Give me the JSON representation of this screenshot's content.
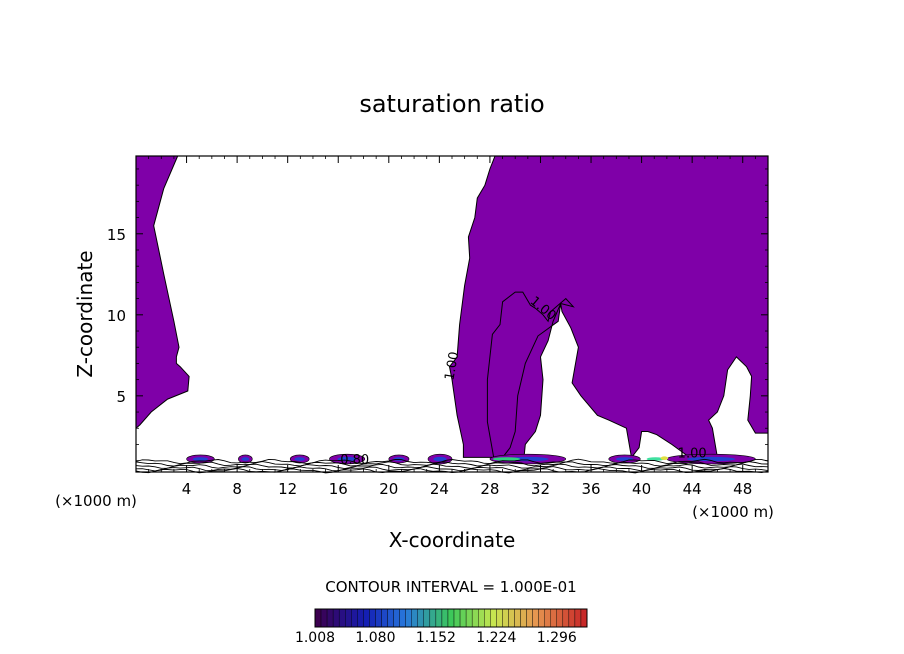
{
  "chart_data": {
    "type": "contour",
    "title": "saturation ratio",
    "xlabel": "X-coordinate",
    "ylabel": "Z-coordinate",
    "x_unit_left": "(×1000 m)",
    "x_unit_right": "(×1000 m)",
    "xlim": [
      0,
      50
    ],
    "ylim": [
      0.3,
      19.8
    ],
    "x_ticks": [
      4,
      8,
      12,
      16,
      20,
      24,
      28,
      32,
      36,
      40,
      44,
      48
    ],
    "y_ticks": [
      5,
      10,
      15
    ],
    "contour_labels": [
      {
        "text": "1.00",
        "x": 25.3,
        "y": 6.8
      },
      {
        "text": "1.00",
        "x": 32.0,
        "y": 10.2
      },
      {
        "text": "0.80",
        "x": 17.3,
        "y": 0.8
      },
      {
        "text": "1.00",
        "x": 44.0,
        "y": 1.2
      }
    ],
    "fill_color": "#7f00a8",
    "contour_interval_text": "CONTOUR INTERVAL = 1.000E-01",
    "colorbar": {
      "tick_labels": [
        "1.008",
        "1.080",
        "1.152",
        "1.224",
        "1.296"
      ],
      "range": [
        1.008,
        1.332
      ]
    },
    "regions": [
      {
        "points": [
          [
            0,
            19.8
          ],
          [
            3.3,
            19.8
          ],
          [
            2.2,
            17.8
          ],
          [
            1.4,
            15.5
          ],
          [
            2.2,
            12.5
          ],
          [
            3.0,
            9.6
          ],
          [
            3.4,
            8.0
          ],
          [
            3.2,
            7.4
          ],
          [
            3.2,
            7.0
          ],
          [
            3.5,
            6.8
          ],
          [
            4.2,
            6.2
          ],
          [
            4.1,
            5.3
          ],
          [
            2.5,
            4.8
          ],
          [
            1.2,
            4.0
          ],
          [
            0.3,
            3.2
          ],
          [
            0,
            3.0
          ]
        ]
      },
      {
        "points": [
          [
            28.4,
            19.8
          ],
          [
            50,
            19.8
          ],
          [
            50,
            2.7
          ],
          [
            49,
            2.7
          ],
          [
            48.4,
            3.5
          ],
          [
            48.6,
            5.0
          ],
          [
            48.7,
            6.2
          ],
          [
            48.3,
            6.8
          ],
          [
            47.5,
            7.4
          ],
          [
            46.8,
            6.6
          ],
          [
            46.5,
            5.0
          ],
          [
            46.0,
            4.0
          ],
          [
            45.3,
            3.5
          ],
          [
            45.6,
            3.0
          ],
          [
            46.0,
            1.2
          ],
          [
            43.8,
            1.2
          ],
          [
            42.4,
            2.0
          ],
          [
            41.2,
            2.6
          ],
          [
            40.5,
            2.8
          ],
          [
            40.0,
            2.8
          ],
          [
            39.8,
            1.8
          ],
          [
            39.2,
            1.2
          ],
          [
            38.8,
            3.0
          ],
          [
            37.4,
            3.5
          ],
          [
            36.5,
            3.8
          ],
          [
            35.2,
            5.0
          ],
          [
            34.5,
            5.8
          ],
          [
            35.0,
            8.0
          ],
          [
            34.4,
            9.2
          ],
          [
            33.7,
            10.2
          ],
          [
            33.6,
            10.7
          ],
          [
            33.0,
            9.6
          ],
          [
            32.6,
            8.4
          ],
          [
            32.0,
            7.4
          ],
          [
            32.2,
            6.0
          ],
          [
            32.0,
            3.8
          ],
          [
            31.6,
            2.8
          ],
          [
            30.8,
            2.0
          ],
          [
            30.7,
            1.2
          ],
          [
            28.3,
            1.2
          ],
          [
            27.8,
            3.4
          ],
          [
            27.8,
            6.0
          ],
          [
            28.2,
            8.8
          ],
          [
            28.8,
            9.4
          ],
          [
            29.0,
            10.8
          ],
          [
            30.0,
            11.4
          ],
          [
            30.6,
            11.4
          ],
          [
            31.2,
            10.6
          ],
          [
            31.6,
            10.4
          ],
          [
            32.2,
            10.0
          ],
          [
            32.6,
            9.6
          ],
          [
            32.8,
            10.2
          ],
          [
            34.0,
            11.0
          ],
          [
            34.6,
            10.5
          ],
          [
            33.6,
            10.7
          ],
          [
            33.4,
            9.6
          ],
          [
            31.8,
            8.7
          ],
          [
            30.8,
            7.0
          ],
          [
            30.2,
            5.0
          ],
          [
            30.0,
            2.8
          ],
          [
            29.6,
            1.8
          ],
          [
            29.0,
            1.2
          ],
          [
            25.9,
            1.2
          ],
          [
            25.9,
            2.0
          ],
          [
            25.4,
            3.8
          ],
          [
            25.0,
            6.0
          ],
          [
            24.8,
            6.8
          ],
          [
            25.4,
            7.4
          ],
          [
            25.6,
            9.4
          ],
          [
            26.0,
            11.8
          ],
          [
            26.4,
            13.5
          ],
          [
            26.3,
            14.8
          ],
          [
            26.8,
            16.0
          ],
          [
            27.0,
            17.2
          ],
          [
            27.6,
            18.0
          ],
          [
            28.0,
            19.0
          ]
        ]
      }
    ],
    "blobs": [
      {
        "x": 4.0,
        "y": 1.1,
        "w": 2.2,
        "h": 0.5
      },
      {
        "x": 8.1,
        "y": 1.1,
        "w": 1.1,
        "h": 0.5
      },
      {
        "x": 12.2,
        "y": 1.1,
        "w": 1.5,
        "h": 0.5
      },
      {
        "x": 15.3,
        "y": 1.1,
        "w": 2.8,
        "h": 0.6
      },
      {
        "x": 20.0,
        "y": 1.1,
        "w": 1.6,
        "h": 0.5
      },
      {
        "x": 23.1,
        "y": 1.1,
        "w": 1.9,
        "h": 0.6
      },
      {
        "x": 28.0,
        "y": 1.1,
        "w": 6.0,
        "h": 0.6
      },
      {
        "x": 37.4,
        "y": 1.1,
        "w": 2.5,
        "h": 0.5
      },
      {
        "x": 42.0,
        "y": 1.1,
        "w": 7.0,
        "h": 0.6
      }
    ],
    "highlights": [
      {
        "x": 28.2,
        "y": 1.1,
        "w": 2.2,
        "h": 0.25,
        "color": "#30d080"
      },
      {
        "x": 40.4,
        "y": 1.1,
        "w": 1.4,
        "h": 0.25,
        "color": "#40e0a0"
      },
      {
        "x": 41.5,
        "y": 1.15,
        "w": 0.6,
        "h": 0.2,
        "color": "#e0e040"
      }
    ]
  }
}
